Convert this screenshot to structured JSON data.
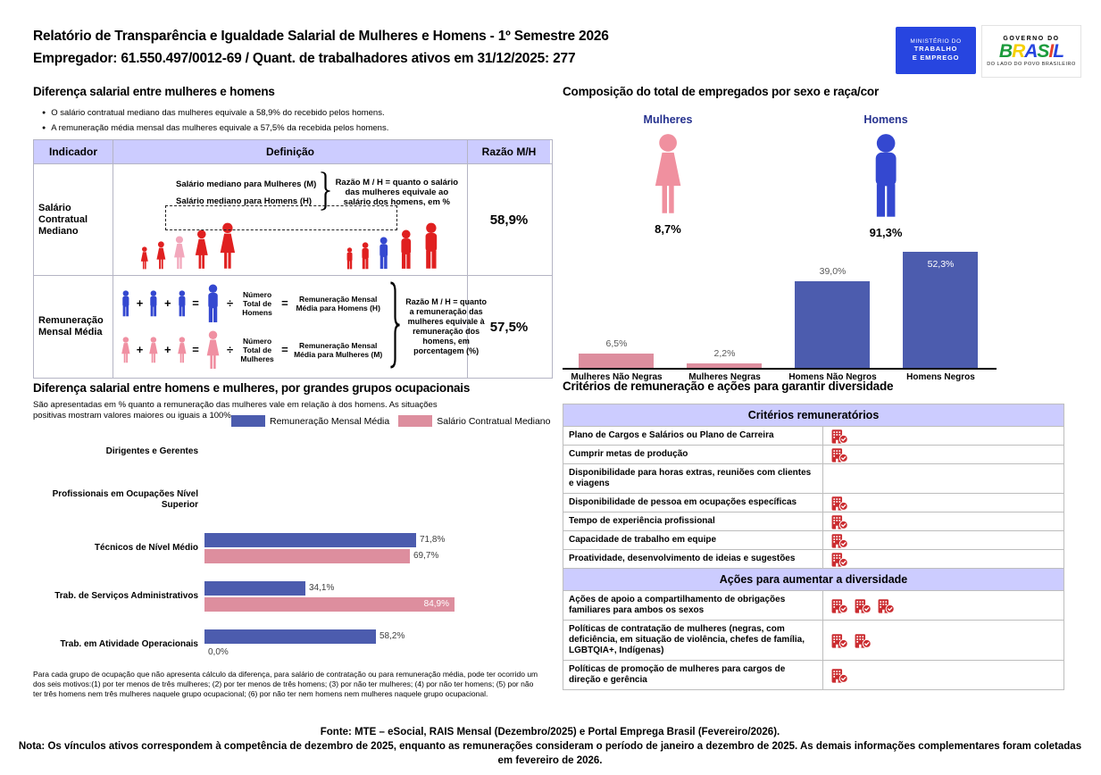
{
  "header": {
    "title_line1": "Relatório de Transparência e Igualdade Salarial de Mulheres e Homens - 1º Semestre 2026",
    "title_line2": "Empregador: 61.550.497/0012-69 / Quant. de trabalhadores ativos em 31/12/2025: 277",
    "mte_logo": {
      "line1": "MINISTÉRIO DO",
      "line2": "TRABALHO",
      "line3": "E EMPREGO",
      "bg": "#2745e0"
    },
    "gov_logo": {
      "top": "GOVERNO DO",
      "brand": "BRASIL",
      "bottom": "DO LADO DO POVO BRASILEIRO",
      "letter_colors": [
        "#1c9b3c",
        "#f6d000",
        "#2745e0",
        "#1c9b3c",
        "#e8412d",
        "#2745e0"
      ]
    }
  },
  "salary_gap": {
    "title": "Diferença salarial entre mulheres e homens",
    "bullets": [
      "O salário contratual mediano das mulheres equivale a 58,9% do recebido pelos homens.",
      "A remuneração média mensal das mulheres equivale a 57,5% da recebida pelos homens."
    ],
    "table": {
      "col_headers": [
        "Indicador",
        "Definição",
        "Razão M/H"
      ],
      "median_row": {
        "indicator": "Salário Contratual Mediano",
        "def_line1": "Salário mediano para Mulheres (M)",
        "def_line2": "Salário mediano para Homens (H)",
        "note": "Razão M / H = quanto o salário das mulheres equivale ao salário dos homens, em %",
        "ratio": "58,9%"
      },
      "mean_row": {
        "indicator": "Remuneração Mensal Média",
        "plus": "+",
        "equals": "=",
        "divide": "÷",
        "men_divisor": "Número Total de Homens",
        "men_result": "Remuneração Mensal Média para Homens (H)",
        "women_divisor": "Número Total de Mulheres",
        "women_result": "Remuneração Mensal Média para Mulheres (M)",
        "note": "Razão M / H = quanto a remuneração das mulheres equivale à remuneração dos homens, em porcentagem (%)",
        "ratio": "57,5%"
      }
    },
    "colors": {
      "red_figure": "#e02020",
      "pink_highlight": "#f2a8bc",
      "blue_highlight": "#3448d0",
      "pink_figure": "#f090a2",
      "blue_figure": "#3448d0"
    }
  },
  "composition": {
    "title": "Composição do total de empregados por sexo e raça/cor",
    "women": {
      "label": "Mulheres",
      "pct": "8,7%",
      "color": "#f0909f"
    },
    "men": {
      "label": "Homens",
      "pct": "91,3%",
      "color": "#3448d0"
    }
  },
  "occupational": {
    "title": "Diferença salarial entre homens e mulheres, por grandes grupos ocupacionais",
    "subtitle": "São apresentadas em % quanto a remuneração das mulheres vale em relação à dos homens. As situações positivas mostram valores maiores ou iguais a 100%",
    "footnote": "Para cada grupo de ocupação que não apresenta cálculo da diferença, para salário de contratação ou para remuneração média, pode ter ocorrido um dos seis motivos:(1) por ter menos de três mulheres; (2) por ter menos de três homens; (3) por não ter mulheres; (4) por não ter homens; (5) por não ter três homens nem três mulheres naquele grupo ocupacional; (6) por não ter nem homens nem mulheres naquele grupo ocupacional."
  },
  "criteria": {
    "title": "Critérios de remuneração e ações para garantir diversidade",
    "sections": [
      {
        "header": "Critérios remuneratórios",
        "rows": [
          {
            "label": "Plano de Cargos e Salários ou Plano de Carreira",
            "icons": 1
          },
          {
            "label": "Cumprir metas de produção",
            "icons": 1
          },
          {
            "label": "Disponibilidade para horas extras, reuniões com clientes e viagens",
            "icons": 0
          },
          {
            "label": "Disponibilidade de pessoa em ocupações específicas",
            "icons": 1
          },
          {
            "label": "Tempo de experiência profissional",
            "icons": 1
          },
          {
            "label": "Capacidade de trabalho em equipe",
            "icons": 1
          },
          {
            "label": "Proatividade, desenvolvimento de ideias e sugestões",
            "icons": 1
          }
        ]
      },
      {
        "header": "Ações para aumentar a diversidade",
        "rows": [
          {
            "label": "Ações de apoio a compartilhamento de obrigações familiares para ambos os sexos",
            "icons": 3
          },
          {
            "label": "Políticas de contratação de mulheres (negras, com deficiência, em situação de violência, chefes de família, LGBTQIA+, Indígenas)",
            "icons": 2
          },
          {
            "label": "Políticas de promoção de mulheres para cargos de direção e gerência",
            "icons": 1
          }
        ]
      }
    ],
    "icon_color": "#cb2c30"
  },
  "footer": {
    "fonte": "Fonte: MTE – eSocial, RAIS Mensal (Dezembro/2025) e Portal Emprega Brasil (Fevereiro/2026).",
    "nota": "Nota: Os vínculos ativos correspondem à competência de dezembro de 2025, enquanto as remunerações consideram o período de janeiro a dezembro de 2025. As demais informações complementares foram coletadas em fevereiro de 2026."
  },
  "chart_data": [
    {
      "id": "composition_by_sex_race",
      "type": "bar",
      "title": "Composição do total de empregados por sexo e raça/cor",
      "categories": [
        "Mulheres Não Negras",
        "Mulheres Negras",
        "Homens Não Negros",
        "Homens Negros"
      ],
      "values": [
        6.5,
        2.2,
        39.0,
        52.3
      ],
      "labels": [
        "6,5%",
        "2,2%",
        "39,0%",
        "52,3%"
      ],
      "label_inside": [
        false,
        false,
        false,
        true
      ],
      "colors": [
        "#dd8e9e",
        "#dd8e9e",
        "#4c5cae",
        "#4c5cae"
      ],
      "xlabel": "",
      "ylabel": "",
      "ylim": [
        0,
        55
      ],
      "unit": "%",
      "grid": false,
      "legend": "none"
    },
    {
      "id": "salary_gap_by_occupation",
      "type": "bar-horizontal-grouped",
      "title": "Diferença salarial entre homens e mulheres, por grandes grupos ocupacionais",
      "categories": [
        "Dirigentes e Gerentes",
        "Profissionais em Ocupações Nível Superior",
        "Técnicos de Nível Médio",
        "Trab. de Serviços Administrativos",
        "Trab. em Atividade Operacionais"
      ],
      "series": [
        {
          "name": "Remuneração Mensal Média",
          "color": "#4c5cae",
          "values": [
            null,
            null,
            71.8,
            34.1,
            58.2
          ],
          "labels": [
            "",
            "",
            "71,8%",
            "34,1%",
            "58,2%"
          ],
          "label_inside": [
            false,
            false,
            false,
            false,
            false
          ]
        },
        {
          "name": "Salário Contratual Mediano",
          "color": "#dd8e9e",
          "values": [
            null,
            null,
            69.7,
            84.9,
            0.0
          ],
          "labels": [
            "",
            "",
            "69,7%",
            "84,9%",
            "0,0%"
          ],
          "label_inside": [
            false,
            false,
            false,
            true,
            false
          ]
        }
      ],
      "xlim": [
        0,
        100
      ],
      "unit": "%",
      "grid": false,
      "legend": "top-right"
    }
  ]
}
